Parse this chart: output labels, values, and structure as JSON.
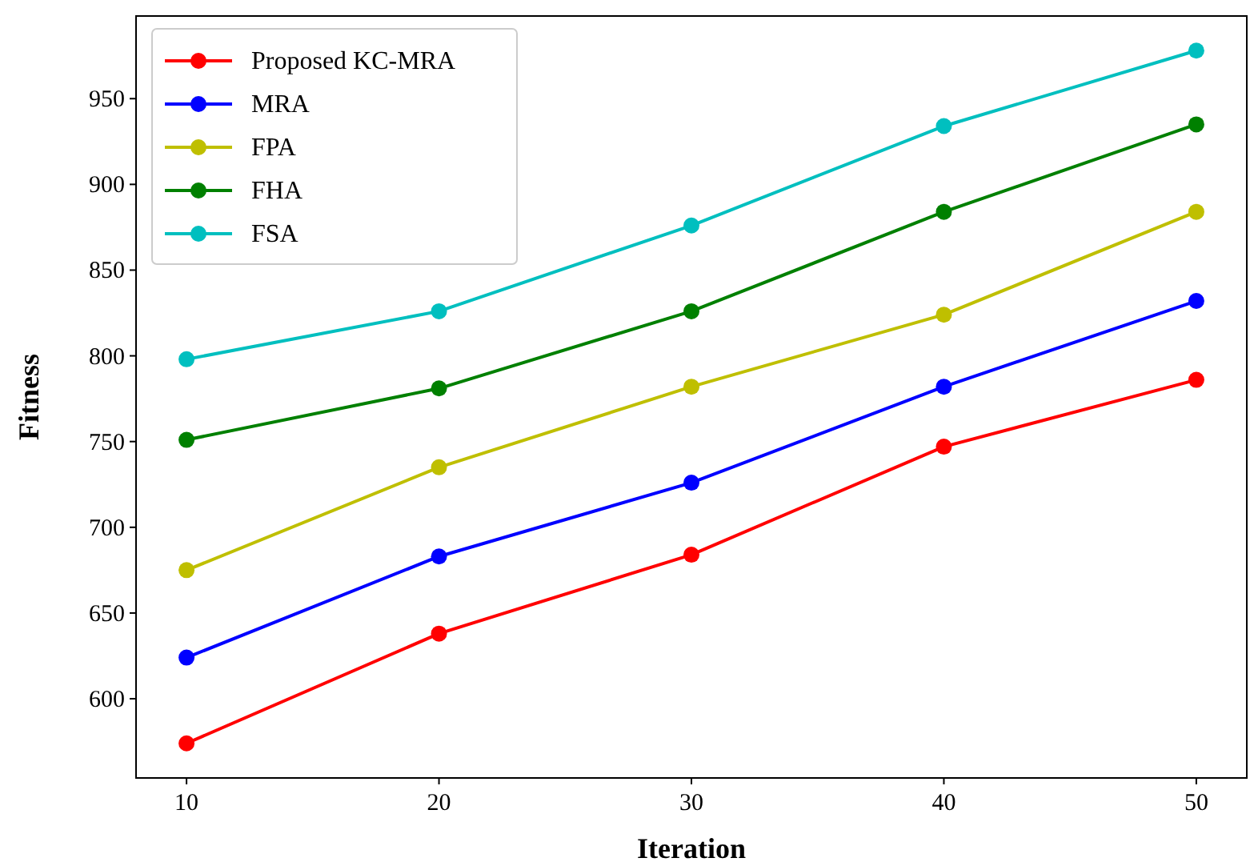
{
  "chart_data": {
    "type": "line",
    "xlabel": "Iteration",
    "ylabel": "Fitness",
    "x": [
      10,
      20,
      30,
      40,
      50
    ],
    "xlim": [
      8,
      52
    ],
    "ylim": [
      553.8,
      998.2
    ],
    "xticks": [
      10,
      20,
      30,
      40,
      50
    ],
    "yticks": [
      600,
      650,
      700,
      750,
      800,
      850,
      900,
      950
    ],
    "marker": "circle",
    "line_style": "solid",
    "legend": "top left",
    "grid": false,
    "series": [
      {
        "name": "Proposed KC-MRA",
        "color": "#ff0000",
        "values": [
          574,
          638,
          684,
          747,
          786
        ]
      },
      {
        "name": "MRA",
        "color": "#0000ff",
        "values": [
          624,
          683,
          726,
          782,
          832
        ]
      },
      {
        "name": "FPA",
        "color": "#bfbf00",
        "values": [
          675,
          735,
          782,
          824,
          884
        ]
      },
      {
        "name": "FHA",
        "color": "#008000",
        "values": [
          751,
          781,
          826,
          884,
          935
        ]
      },
      {
        "name": "FSA",
        "color": "#00bfbf",
        "values": [
          798,
          826,
          876,
          934,
          978
        ]
      }
    ]
  }
}
